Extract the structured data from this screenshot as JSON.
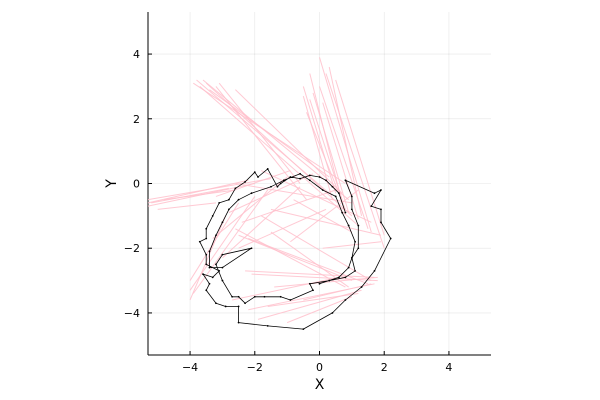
{
  "chart_data": {
    "type": "line",
    "title": "",
    "xlabel": "X",
    "ylabel": "Y",
    "xlim": [
      -5.3,
      5.3
    ],
    "ylim": [
      -5.3,
      5.3
    ],
    "xticks": [
      -4,
      -2,
      0,
      2,
      4
    ],
    "yticks": [
      -4,
      -2,
      0,
      2,
      4
    ],
    "xtick_labels": [
      "−4",
      "−2",
      "0",
      "2",
      "4"
    ],
    "ytick_labels": [
      "−4",
      "−2",
      "0",
      "2",
      "4"
    ],
    "grid": true,
    "legend": "none",
    "series": [
      {
        "color": "#000000",
        "points": [
          [
            0.8,
            -0.9
          ],
          [
            0.6,
            -0.3
          ],
          [
            0.4,
            -0.1
          ],
          [
            0.2,
            0.1
          ],
          [
            0.0,
            0.2
          ],
          [
            -0.3,
            0.25
          ],
          [
            -0.6,
            0.15
          ],
          [
            -0.9,
            0.2
          ],
          [
            -1.2,
            0.0
          ],
          [
            -1.3,
            -0.1
          ],
          [
            -1.6,
            0.45
          ],
          [
            -1.9,
            0.2
          ],
          [
            -2.0,
            0.35
          ],
          [
            -2.3,
            0.05
          ],
          [
            -2.6,
            -0.15
          ],
          [
            -2.8,
            -0.5
          ],
          [
            -3.1,
            -0.6
          ],
          [
            -3.3,
            -1.0
          ],
          [
            -3.5,
            -1.4
          ],
          [
            -3.5,
            -1.7
          ],
          [
            -3.7,
            -1.8
          ],
          [
            -3.5,
            -2.2
          ],
          [
            -3.5,
            -2.5
          ],
          [
            -3.1,
            -2.7
          ],
          [
            -3.3,
            -2.9
          ],
          [
            -3.6,
            -2.8
          ],
          [
            -3.4,
            -3.1
          ],
          [
            -3.5,
            -3.3
          ],
          [
            -3.2,
            -3.7
          ],
          [
            -2.9,
            -3.8
          ],
          [
            -2.5,
            -3.8
          ],
          [
            -2.5,
            -4.3
          ],
          [
            -1.6,
            -4.4
          ],
          [
            -0.5,
            -4.5
          ],
          [
            0.4,
            -4.0
          ],
          [
            0.8,
            -3.6
          ],
          [
            1.3,
            -3.2
          ],
          [
            1.7,
            -2.7
          ],
          [
            2.2,
            -1.7
          ],
          [
            1.9,
            -1.2
          ],
          [
            1.9,
            -0.8
          ],
          [
            1.6,
            -0.7
          ],
          [
            1.9,
            -0.2
          ],
          [
            1.7,
            -0.3
          ],
          [
            0.8,
            0.1
          ],
          [
            1.0,
            -0.4
          ],
          [
            1.0,
            -0.8
          ],
          [
            1.2,
            -1.3
          ],
          [
            1.2,
            -2.0
          ],
          [
            1.0,
            -2.3
          ],
          [
            1.1,
            -2.7
          ],
          [
            0.8,
            -2.9
          ],
          [
            0.3,
            -3.0
          ],
          [
            -0.3,
            -3.1
          ],
          [
            -0.2,
            -3.3
          ],
          [
            -0.9,
            -3.6
          ],
          [
            -1.2,
            -3.5
          ],
          [
            -1.7,
            -3.5
          ],
          [
            -2.0,
            -3.5
          ],
          [
            -2.3,
            -3.7
          ],
          [
            -2.5,
            -3.5
          ],
          [
            -2.7,
            -3.5
          ],
          [
            -3.0,
            -3.0
          ],
          [
            -3.2,
            -2.5
          ],
          [
            -3.0,
            -2.2
          ],
          [
            -2.1,
            -2.0
          ],
          [
            -3.0,
            -2.6
          ],
          [
            -3.4,
            -2.6
          ],
          [
            -3.4,
            -2.1
          ],
          [
            -3.2,
            -1.6
          ],
          [
            -3.0,
            -1.2
          ],
          [
            -2.8,
            -0.8
          ],
          [
            -2.5,
            -0.5
          ],
          [
            -2.1,
            -0.3
          ],
          [
            -1.5,
            -0.1
          ],
          [
            -1.1,
            0.1
          ],
          [
            -0.6,
            0.3
          ],
          [
            -0.3,
            0.1
          ],
          [
            0.1,
            -0.2
          ],
          [
            0.5,
            -0.4
          ],
          [
            0.7,
            -0.9
          ],
          [
            0.9,
            -1.3
          ],
          [
            1.1,
            -1.8
          ],
          [
            1.0,
            -2.3
          ],
          [
            0.9,
            -2.6
          ],
          [
            0.6,
            -2.9
          ],
          [
            0.0,
            -3.1
          ]
        ]
      }
    ],
    "segments": {
      "color": "#ffc0cb",
      "lines": [
        [
          -3.9,
          3.1,
          0.8,
          0.0
        ],
        [
          -3.6,
          3.2,
          0.9,
          -0.5
        ],
        [
          -3.5,
          3.1,
          1.0,
          -1.0
        ],
        [
          -3.8,
          3.2,
          0.3,
          -0.3
        ],
        [
          -3.2,
          3.0,
          -0.4,
          -0.5
        ],
        [
          -3.4,
          2.9,
          0.3,
          0.2
        ],
        [
          -2.6,
          2.9,
          0.7,
          -0.3
        ],
        [
          -3.7,
          3.0,
          1.2,
          -1.3
        ],
        [
          -3.1,
          3.1,
          -0.6,
          0.0
        ],
        [
          -0.3,
          2.6,
          0.7,
          -0.5
        ],
        [
          -0.5,
          3.0,
          0.5,
          -0.3
        ],
        [
          -0.3,
          3.4,
          0.7,
          -0.6
        ],
        [
          0.0,
          3.9,
          1.6,
          -1.5
        ],
        [
          -0.2,
          2.8,
          0.9,
          -0.9
        ],
        [
          0.2,
          3.4,
          2.0,
          -2.0
        ],
        [
          -0.4,
          2.2,
          0.8,
          -0.8
        ],
        [
          0.5,
          3.2,
          2.0,
          -1.6
        ],
        [
          0.3,
          3.6,
          1.3,
          -1.0
        ],
        [
          0.0,
          3.0,
          1.5,
          -1.4
        ],
        [
          -0.5,
          2.7,
          0.4,
          -0.5
        ],
        [
          0.1,
          2.5,
          1.2,
          -1.1
        ],
        [
          -5.3,
          -0.6,
          -2.2,
          0.1
        ],
        [
          -5.3,
          -0.5,
          -1.5,
          0.15
        ],
        [
          -5.2,
          -0.6,
          -2.8,
          -0.15
        ],
        [
          -5.3,
          -0.7,
          -2.0,
          0.0
        ],
        [
          -4.8,
          -0.5,
          -2.6,
          -0.2
        ],
        [
          -5.0,
          -0.8,
          -3.2,
          -0.6
        ],
        [
          -4.0,
          -3.3,
          -2.0,
          -0.4
        ],
        [
          -4.0,
          -3.0,
          -2.5,
          -0.6
        ],
        [
          -3.9,
          -3.4,
          -1.6,
          -0.2
        ],
        [
          -4.0,
          -3.6,
          -2.9,
          -1.0
        ],
        [
          -2.5,
          -1.6,
          1.0,
          -3.0
        ],
        [
          -2.2,
          -1.7,
          1.5,
          -3.1
        ],
        [
          -2.6,
          -1.4,
          0.8,
          -3.2
        ],
        [
          -2.3,
          -2.7,
          1.7,
          -2.9
        ],
        [
          -1.8,
          -1.0,
          1.6,
          -3.0
        ],
        [
          -2.1,
          -2.8,
          1.8,
          -3.0
        ],
        [
          -1.5,
          -1.5,
          0.9,
          -3.2
        ],
        [
          -1.9,
          -4.2,
          1.3,
          -3.3
        ],
        [
          -2.2,
          -3.9,
          1.7,
          -3.1
        ],
        [
          -1.0,
          -4.3,
          1.0,
          -3.5
        ],
        [
          -1.4,
          -3.2,
          1.8,
          -2.9
        ],
        [
          -0.5,
          -3.6,
          1.6,
          -3.1
        ],
        [
          -2.7,
          -3.6,
          0.6,
          -2.9
        ],
        [
          -1.6,
          -3.8,
          1.2,
          -3.4
        ],
        [
          0.1,
          -2.0,
          1.9,
          -1.8
        ],
        [
          -0.9,
          -1.8,
          1.2,
          -0.2
        ],
        [
          -1.5,
          -0.8,
          1.9,
          -1.6
        ],
        [
          -0.8,
          -0.5,
          1.0,
          -1.5
        ],
        [
          -2.8,
          -0.9,
          -0.2,
          0.3
        ],
        [
          -2.4,
          -1.2,
          0.5,
          -0.2
        ],
        [
          -3.3,
          -1.7,
          -1.0,
          0.2
        ],
        [
          -3.0,
          -2.3,
          -0.6,
          -0.1
        ],
        [
          -2.5,
          -2.0,
          0.2,
          -0.8
        ],
        [
          -1.8,
          0.4,
          1.6,
          -1.2
        ],
        [
          -2.6,
          0.0,
          1.0,
          -0.6
        ],
        [
          -3.2,
          -0.4,
          -0.9,
          0.4
        ]
      ]
    }
  }
}
